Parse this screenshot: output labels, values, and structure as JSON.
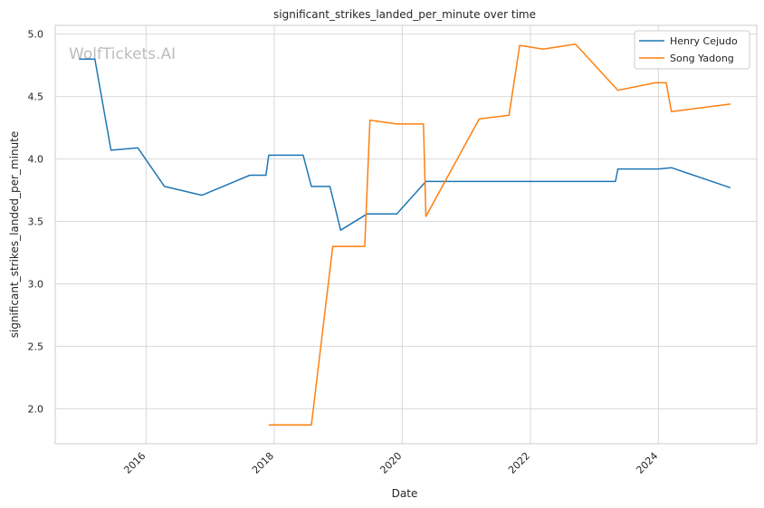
{
  "chart_data": {
    "type": "line",
    "title": "significant_strikes_landed_per_minute over time",
    "xlabel": "Date",
    "ylabel": "significant_strikes_landed_per_minute",
    "xlim": [
      "2014-08-01",
      "2025-07-15"
    ],
    "ylim": [
      1.72,
      5.07
    ],
    "x_ticks": [
      {
        "label": "2016",
        "date": "2016-01-01"
      },
      {
        "label": "2018",
        "date": "2018-01-01"
      },
      {
        "label": "2020",
        "date": "2020-01-01"
      },
      {
        "label": "2022",
        "date": "2022-01-01"
      },
      {
        "label": "2024",
        "date": "2024-01-01"
      }
    ],
    "y_ticks": [
      {
        "label": "2.0",
        "value": 2.0
      },
      {
        "label": "2.5",
        "value": 2.5
      },
      {
        "label": "3.0",
        "value": 3.0
      },
      {
        "label": "3.5",
        "value": 3.5
      },
      {
        "label": "4.0",
        "value": 4.0
      },
      {
        "label": "4.5",
        "value": 4.5
      },
      {
        "label": "5.0",
        "value": 5.0
      }
    ],
    "grid": true,
    "legend_position": "top-right",
    "series": [
      {
        "name": "Henry Cejudo",
        "color": "#1f77b4",
        "points": [
          {
            "x": "2014-12-15",
            "y": 4.8
          },
          {
            "x": "2015-03-15",
            "y": 4.8
          },
          {
            "x": "2015-06-15",
            "y": 4.07
          },
          {
            "x": "2015-11-15",
            "y": 4.09
          },
          {
            "x": "2016-04-15",
            "y": 3.78
          },
          {
            "x": "2016-11-15",
            "y": 3.71
          },
          {
            "x": "2017-08-15",
            "y": 3.87
          },
          {
            "x": "2017-11-15",
            "y": 3.87
          },
          {
            "x": "2017-12-01",
            "y": 4.03
          },
          {
            "x": "2018-06-15",
            "y": 4.03
          },
          {
            "x": "2018-08-01",
            "y": 3.78
          },
          {
            "x": "2018-11-15",
            "y": 3.78
          },
          {
            "x": "2019-01-15",
            "y": 3.43
          },
          {
            "x": "2019-06-15",
            "y": 3.56
          },
          {
            "x": "2019-12-01",
            "y": 3.56
          },
          {
            "x": "2020-05-15",
            "y": 3.82
          },
          {
            "x": "2023-05-01",
            "y": 3.82
          },
          {
            "x": "2023-05-15",
            "y": 3.92
          },
          {
            "x": "2024-01-01",
            "y": 3.92
          },
          {
            "x": "2024-03-15",
            "y": 3.93
          },
          {
            "x": "2025-02-15",
            "y": 3.77
          }
        ]
      },
      {
        "name": "Song Yadong",
        "color": "#ff7f0e",
        "points": [
          {
            "x": "2017-12-01",
            "y": 1.87
          },
          {
            "x": "2018-08-01",
            "y": 1.87
          },
          {
            "x": "2018-12-01",
            "y": 3.3
          },
          {
            "x": "2019-06-01",
            "y": 3.3
          },
          {
            "x": "2019-07-01",
            "y": 4.31
          },
          {
            "x": "2019-12-01",
            "y": 4.28
          },
          {
            "x": "2020-05-01",
            "y": 4.28
          },
          {
            "x": "2020-05-15",
            "y": 3.54
          },
          {
            "x": "2021-03-15",
            "y": 4.32
          },
          {
            "x": "2021-09-01",
            "y": 4.35
          },
          {
            "x": "2021-11-01",
            "y": 4.91
          },
          {
            "x": "2022-03-15",
            "y": 4.88
          },
          {
            "x": "2022-09-15",
            "y": 4.92
          },
          {
            "x": "2023-05-15",
            "y": 4.55
          },
          {
            "x": "2023-12-15",
            "y": 4.61
          },
          {
            "x": "2024-02-15",
            "y": 4.61
          },
          {
            "x": "2024-03-15",
            "y": 4.38
          },
          {
            "x": "2025-02-15",
            "y": 4.44
          }
        ]
      }
    ]
  },
  "watermark": "WolfTickets.AI"
}
